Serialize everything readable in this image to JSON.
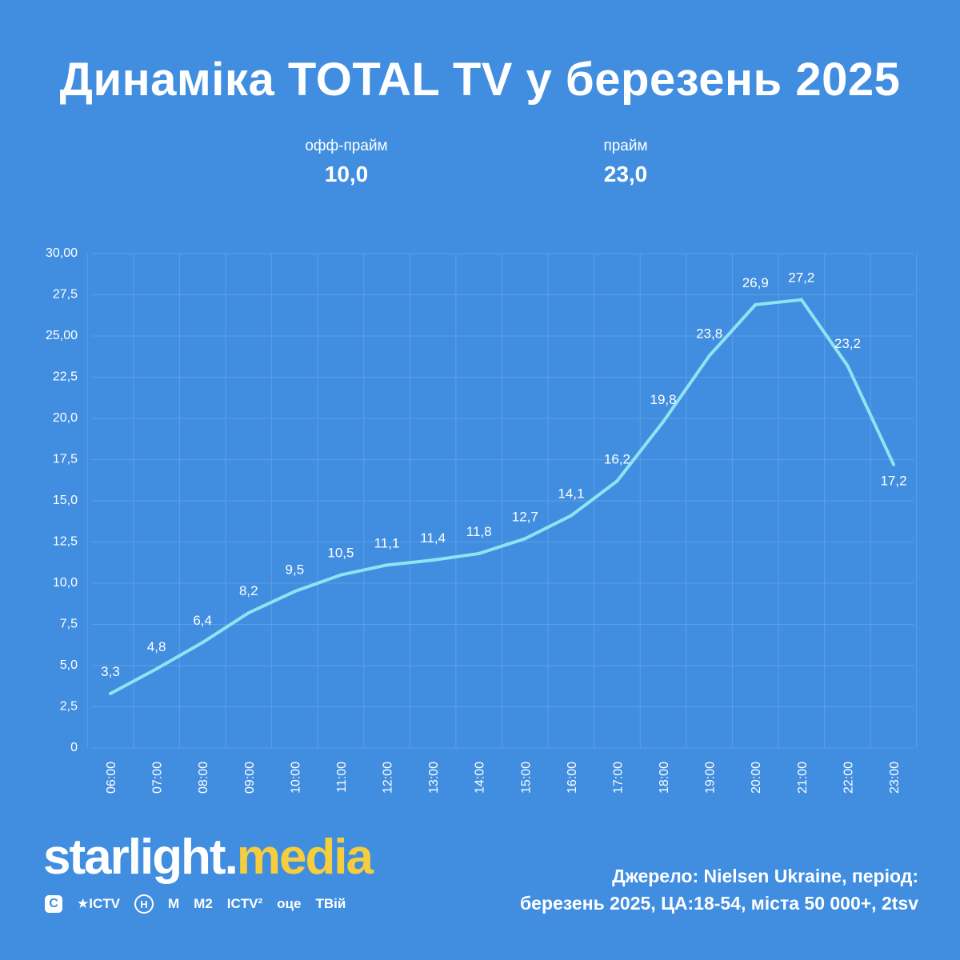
{
  "title": "Динаміка TOTAL TV у березень 2025",
  "kpis": {
    "off_prime": {
      "label": "офф-прайм",
      "value": "10,0"
    },
    "prime": {
      "label": "прайм",
      "value": "23,0"
    }
  },
  "chart_data": {
    "type": "line",
    "title": "",
    "xlabel": "",
    "ylabel": "",
    "ylim": [
      0,
      30
    ],
    "yticks": [
      {
        "value": 0,
        "label": "0"
      },
      {
        "value": 2.5,
        "label": "2,5"
      },
      {
        "value": 5,
        "label": "5,0"
      },
      {
        "value": 7.5,
        "label": "7,5"
      },
      {
        "value": 10,
        "label": "10,0"
      },
      {
        "value": 12.5,
        "label": "12,5"
      },
      {
        "value": 15,
        "label": "15,0"
      },
      {
        "value": 17.5,
        "label": "17,5"
      },
      {
        "value": 20,
        "label": "20,0"
      },
      {
        "value": 22.5,
        "label": "22,5"
      },
      {
        "value": 25,
        "label": "25,00"
      },
      {
        "value": 27.5,
        "label": "27,5"
      },
      {
        "value": 30,
        "label": "30,00"
      }
    ],
    "categories": [
      "06:00",
      "07:00",
      "08:00",
      "09:00",
      "10:00",
      "11:00",
      "12:00",
      "13:00",
      "14:00",
      "15:00",
      "16:00",
      "17:00",
      "18:00",
      "19:00",
      "20:00",
      "21:00",
      "22:00",
      "23:00"
    ],
    "values": [
      3.3,
      4.8,
      6.4,
      8.2,
      9.5,
      10.5,
      11.1,
      11.4,
      11.8,
      12.7,
      14.1,
      16.2,
      19.8,
      23.8,
      26.9,
      27.2,
      23.2,
      17.2
    ],
    "value_labels": [
      "3,3",
      "4,8",
      "6,4",
      "8,2",
      "9,5",
      "10,5",
      "11,1",
      "11,4",
      "11,8",
      "12,7",
      "14,1",
      "16,2",
      "19,8",
      "23,8",
      "26,9",
      "27,2",
      "23,2",
      "17,2"
    ],
    "grid": true,
    "line_color": "#8fe3f2",
    "grid_color": "#5b9fe6"
  },
  "brand": {
    "name": "starlight",
    "dot": ".",
    "suffix": "media",
    "accent": "#f6cd3c"
  },
  "channels": [
    "С",
    "ICTV",
    "Н",
    "М",
    "М2",
    "ICTV²",
    "оце",
    "ТВій"
  ],
  "source": {
    "line1": "Джерело: Nielsen Ukraine, період:",
    "line2": "березень 2025, ЦА:18-54, міста 50 000+, 2tsv"
  }
}
